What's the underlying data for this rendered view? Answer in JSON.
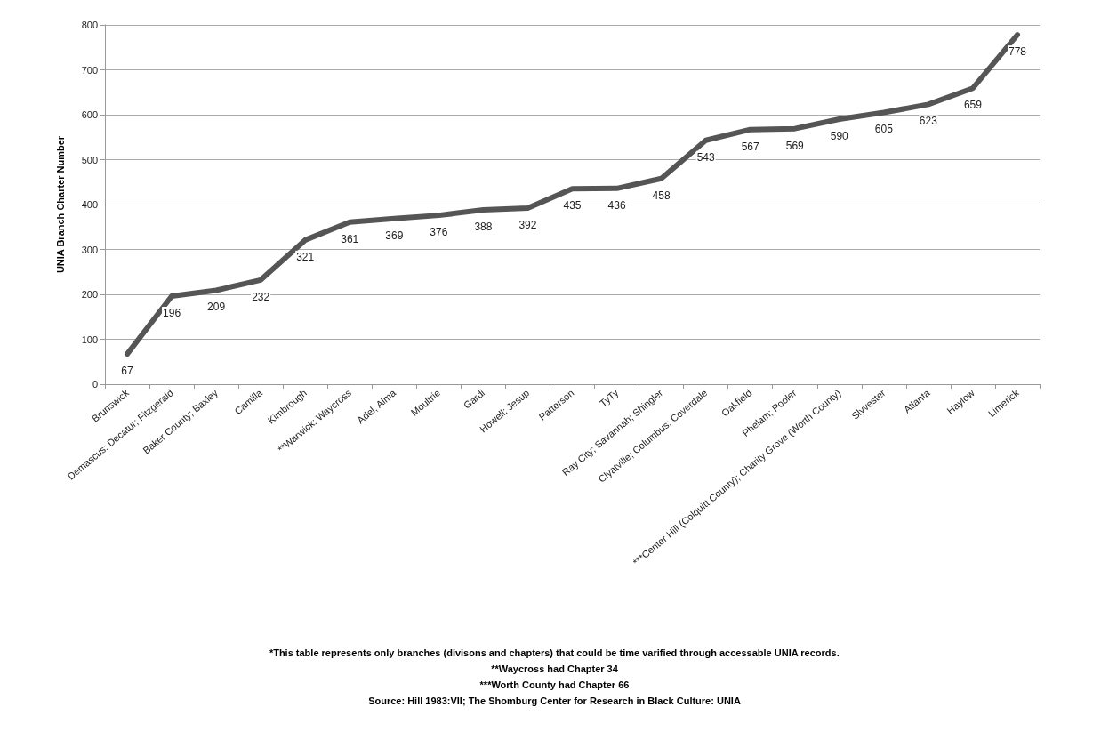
{
  "chart_data": {
    "type": "line",
    "ylabel": "UNIA Branch Charter Number",
    "categories": [
      "Brunswick",
      "Demascus; Decatur; Fitzgerald",
      "Baker County; Baxley",
      "Camilla",
      "Kimbrough",
      "**Warwick; Waycross",
      "Adel, Alma",
      "Moultrie",
      "Gardi",
      "Howell; Jesup",
      "Patterson",
      "TyTy",
      "Ray City; Savannah; Shingler",
      "Clyatville; Columbus; Coverdale",
      "Oakfield",
      "Phelam; Pooler",
      "***Center Hill (Colquitt County); Charity Grove (Worth County)",
      "Slyvester",
      "Atlanta",
      "Haylow",
      "Limerick"
    ],
    "series": [
      {
        "color": "#555555",
        "values": [
          67,
          196,
          209,
          232,
          321,
          361,
          369,
          376,
          388,
          392,
          435,
          436,
          458,
          543,
          567,
          569,
          590,
          605,
          623,
          659,
          778
        ]
      }
    ],
    "ylim": [
      0,
      800
    ],
    "yticks": [
      0,
      100,
      200,
      300,
      400,
      500,
      600,
      700,
      800
    ],
    "grid": "y",
    "data_labels": true,
    "marker": "none",
    "line_style": "solid",
    "annotations": [
      "*This table represents only branches (divisons and chapters) that could be time varified through accessable UNIA records.",
      "**Waycross had Chapter 34",
      "***Worth County had Chapter 66",
      "Source: Hill 1983:VII; The Shomburg Center for Research in Black Culture: UNIA"
    ]
  }
}
